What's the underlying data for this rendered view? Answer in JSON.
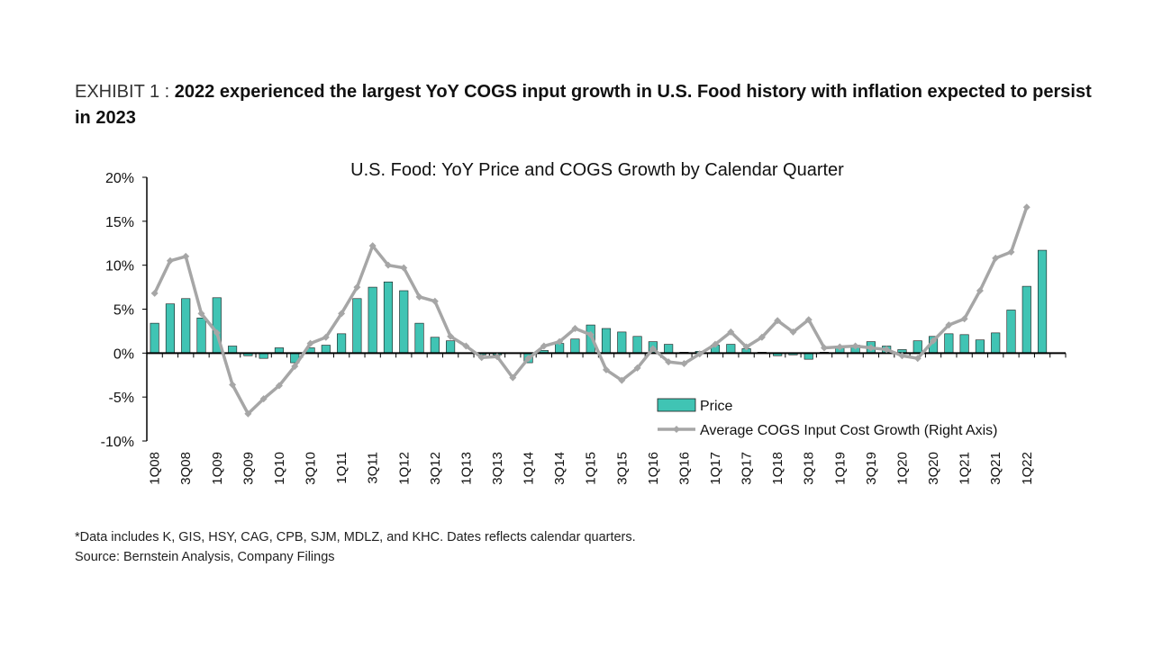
{
  "header": {
    "exhibit_label": "EXHIBIT 1 :",
    "exhibit_title": "2022 experienced the largest YoY COGS input growth in U.S. Food history with inflation expected to persist in 2023"
  },
  "chart_data": {
    "type": "bar",
    "title": "U.S. Food: YoY Price and COGS Growth by Calendar Quarter",
    "ylim": [
      -10,
      20
    ],
    "yticks": [
      "20%",
      "15%",
      "10%",
      "5%",
      "0%",
      "-5%",
      "-10%"
    ],
    "ytick_values": [
      20,
      15,
      10,
      5,
      0,
      -5,
      -10
    ],
    "grid": false,
    "legend_position": "bottom-right",
    "categories": [
      "1Q08",
      "2Q08",
      "3Q08",
      "4Q08",
      "1Q09",
      "2Q09",
      "3Q09",
      "4Q09",
      "1Q10",
      "2Q10",
      "3Q10",
      "4Q10",
      "1Q11",
      "2Q11",
      "3Q11",
      "4Q11",
      "1Q12",
      "2Q12",
      "3Q12",
      "4Q12",
      "1Q13",
      "2Q13",
      "3Q13",
      "4Q13",
      "1Q14",
      "2Q14",
      "3Q14",
      "4Q14",
      "1Q15",
      "2Q15",
      "3Q15",
      "4Q15",
      "1Q16",
      "2Q16",
      "3Q16",
      "4Q16",
      "1Q17",
      "2Q17",
      "3Q17",
      "4Q17",
      "1Q18",
      "2Q18",
      "3Q18",
      "4Q18",
      "1Q19",
      "2Q19",
      "3Q19",
      "4Q19",
      "1Q20",
      "2Q20",
      "3Q20",
      "4Q20",
      "1Q21",
      "2Q21",
      "3Q21",
      "4Q21",
      "1Q22",
      "2Q22",
      "3Q22"
    ],
    "x_tick_labels": [
      "1Q08",
      "3Q08",
      "1Q09",
      "3Q09",
      "1Q10",
      "3Q10",
      "1Q11",
      "3Q11",
      "1Q12",
      "3Q12",
      "1Q13",
      "3Q13",
      "1Q14",
      "3Q14",
      "1Q15",
      "3Q15",
      "1Q16",
      "3Q16",
      "1Q17",
      "3Q17",
      "1Q18",
      "3Q18",
      "1Q19",
      "3Q19",
      "1Q20",
      "3Q20",
      "1Q21",
      "3Q21",
      "1Q22"
    ],
    "series": [
      {
        "name": "Price",
        "type": "bar",
        "color": "#40c4b4",
        "values": [
          3.4,
          5.6,
          6.2,
          4.0,
          6.3,
          0.8,
          -0.3,
          -0.6,
          0.6,
          -1.1,
          0.6,
          0.9,
          2.2,
          6.2,
          7.5,
          8.1,
          7.1,
          3.4,
          1.8,
          1.4,
          0.0,
          -0.2,
          -0.2,
          0.0,
          -1.1,
          0.3,
          1.1,
          1.6,
          3.2,
          2.8,
          2.4,
          1.9,
          1.3,
          1.0,
          0.1,
          0.2,
          0.9,
          1.0,
          0.5,
          0.1,
          -0.3,
          -0.2,
          -0.7,
          0.1,
          0.6,
          0.9,
          1.3,
          0.8,
          0.4,
          1.4,
          1.9,
          2.2,
          2.1,
          1.5,
          2.3,
          4.9,
          7.6,
          11.7,
          0.0
        ]
      },
      {
        "name": "Average COGS Input Cost Growth (Right Axis)",
        "type": "line",
        "color": "#a6a6a6",
        "values": [
          6.8,
          10.5,
          11.0,
          4.5,
          2.3,
          -3.6,
          -6.9,
          -5.2,
          -3.7,
          -1.5,
          1.1,
          1.8,
          4.5,
          7.5,
          12.2,
          10.0,
          9.7,
          6.4,
          5.9,
          1.9,
          0.8,
          -0.5,
          -0.4,
          -2.8,
          -0.6,
          0.8,
          1.3,
          2.8,
          2.1,
          -1.9,
          -3.1,
          -1.7,
          0.5,
          -1.0,
          -1.2,
          -0.1,
          1.0,
          2.4,
          0.7,
          1.8,
          3.7,
          2.4,
          3.8,
          0.6,
          0.7,
          0.8,
          0.6,
          0.4,
          -0.3,
          -0.6,
          1.4,
          3.2,
          3.9,
          7.1,
          10.8,
          11.5,
          16.6,
          null,
          null
        ]
      }
    ]
  },
  "footnotes": {
    "note": "*Data includes K, GIS, HSY, CAG, CPB, SJM, MDLZ, and KHC. Dates reflects calendar quarters.",
    "source": "Source: Bernstein Analysis, Company Filings"
  }
}
